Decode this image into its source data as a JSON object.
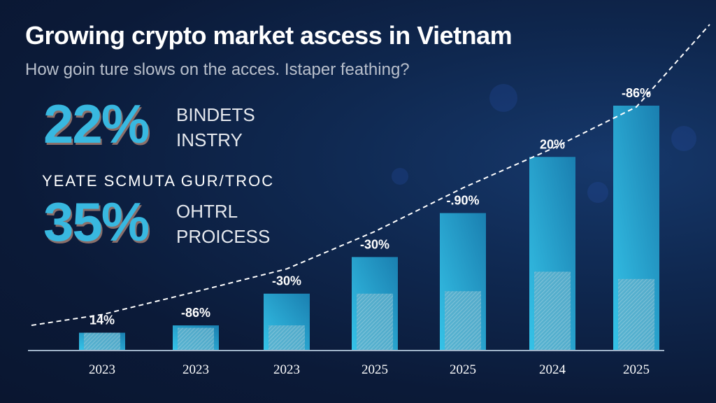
{
  "header": {
    "title": "Growing crypto market ascess in Vietnam",
    "subtitle": "How goin ture slows on the acces. Istaper feathing?"
  },
  "stats": [
    {
      "value": "22%",
      "label_line1": "BINDETS",
      "label_line2": "INSTRY"
    },
    {
      "value": "35%",
      "label_line1": "OHTRL",
      "label_line2": "PROICESS"
    }
  ],
  "stats_divider_text": "YEATE SCMUTA GUR/TROC",
  "colors": {
    "background": "#0b1a38",
    "bar": "#2fb4dc",
    "bar_dark": "#1a7fb0",
    "hatch": "#7fb8cc",
    "accent_text": "#38b8e0",
    "trend_line": "#ffffff"
  },
  "chart_data": {
    "type": "bar",
    "title": "",
    "xlabel": "",
    "ylabel": "",
    "categories": [
      "2023",
      "2023",
      "2023",
      "2025",
      "2025",
      "2024",
      "2025"
    ],
    "data_labels": [
      "14%",
      "-86%",
      "-30%",
      "-30%",
      "-.90%",
      "20%",
      "-86%"
    ],
    "series": [
      {
        "values": [
          7,
          10,
          23,
          38,
          56,
          79,
          100
        ]
      },
      {
        "values": [
          7,
          9,
          10,
          23,
          24,
          32,
          29
        ],
        "style": "hatched-inner"
      }
    ],
    "trend_line": {
      "style": "dashed",
      "values": [
        17,
        28,
        39,
        57,
        78,
        97,
        117
      ]
    },
    "value_axis_shown": false,
    "grid": false,
    "legend": "none"
  }
}
